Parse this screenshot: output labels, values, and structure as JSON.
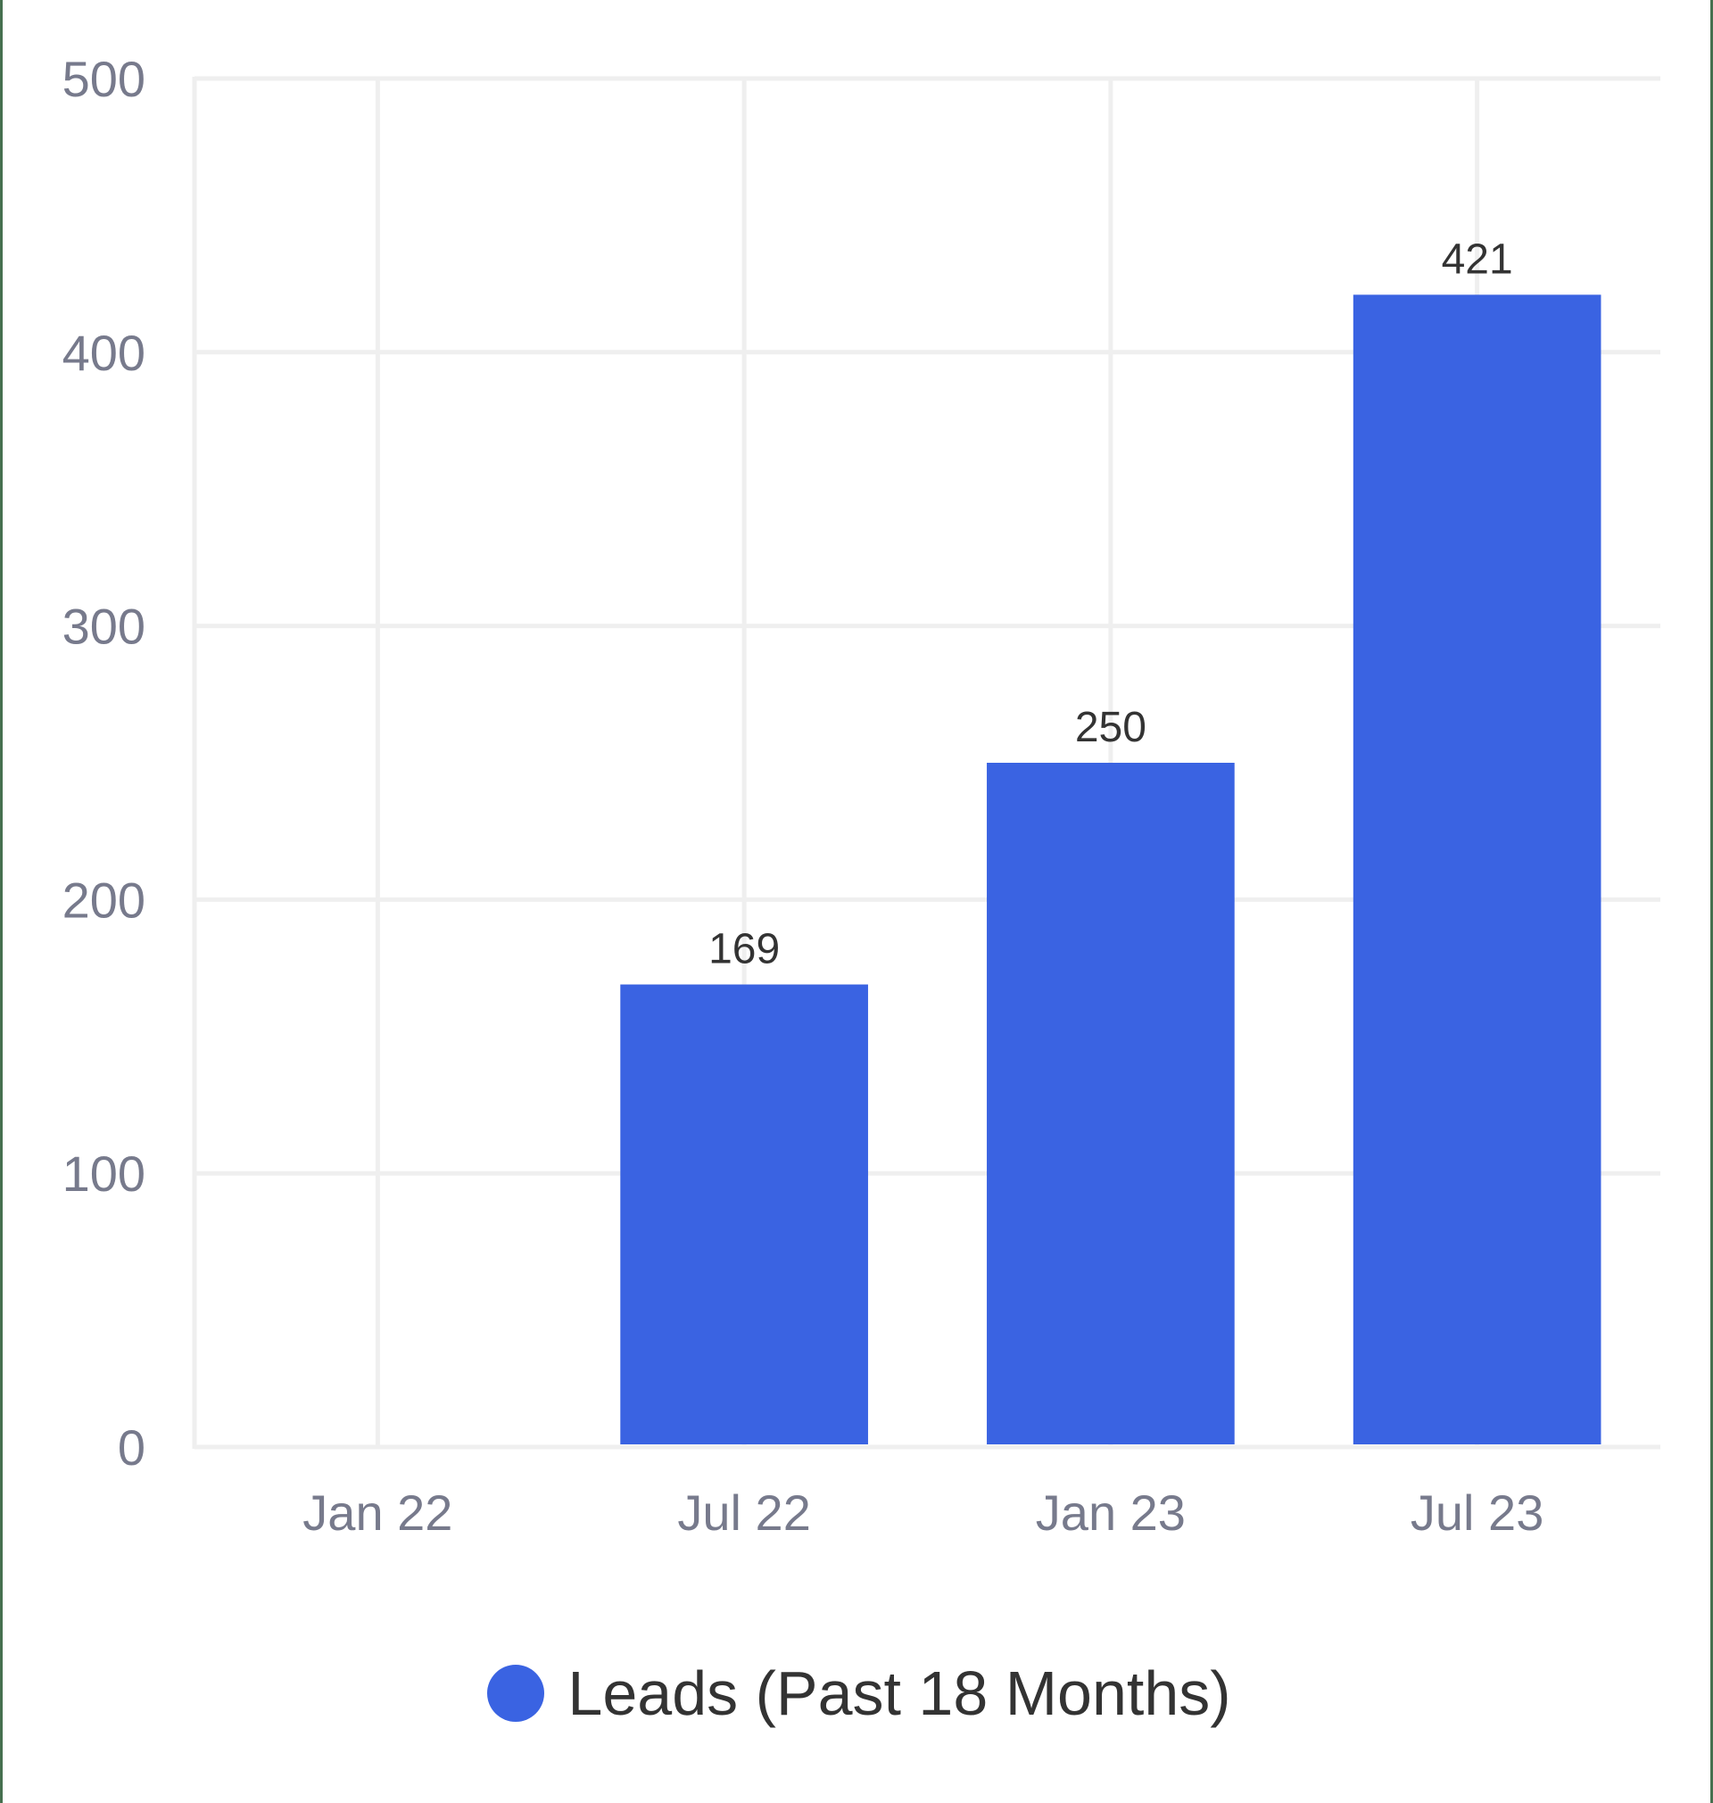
{
  "chart_data": {
    "type": "bar",
    "title": "",
    "xlabel": "",
    "ylabel": "",
    "categories": [
      "Jan 22",
      "Jul 22",
      "Jan 23",
      "Jul 23"
    ],
    "series": [
      {
        "name": "Leads (Past 18 Months)",
        "values": [
          0,
          169,
          250,
          421
        ],
        "data_labels": [
          "",
          "169",
          "250",
          "421"
        ],
        "color": "#3a63e2"
      }
    ],
    "ylim": [
      0,
      500
    ],
    "yticks": [
      "0",
      "100",
      "200",
      "300",
      "400",
      "500"
    ],
    "grid": true,
    "legend_position": "bottom"
  },
  "legend": {
    "label": "Leads (Past 18 Months)",
    "color": "#3a63e2"
  },
  "colors": {
    "bar": "#3a63e2",
    "grid": "#efefef",
    "tick_text": "#777a8c",
    "value_text": "#333333",
    "frame_border": "#46704f"
  }
}
